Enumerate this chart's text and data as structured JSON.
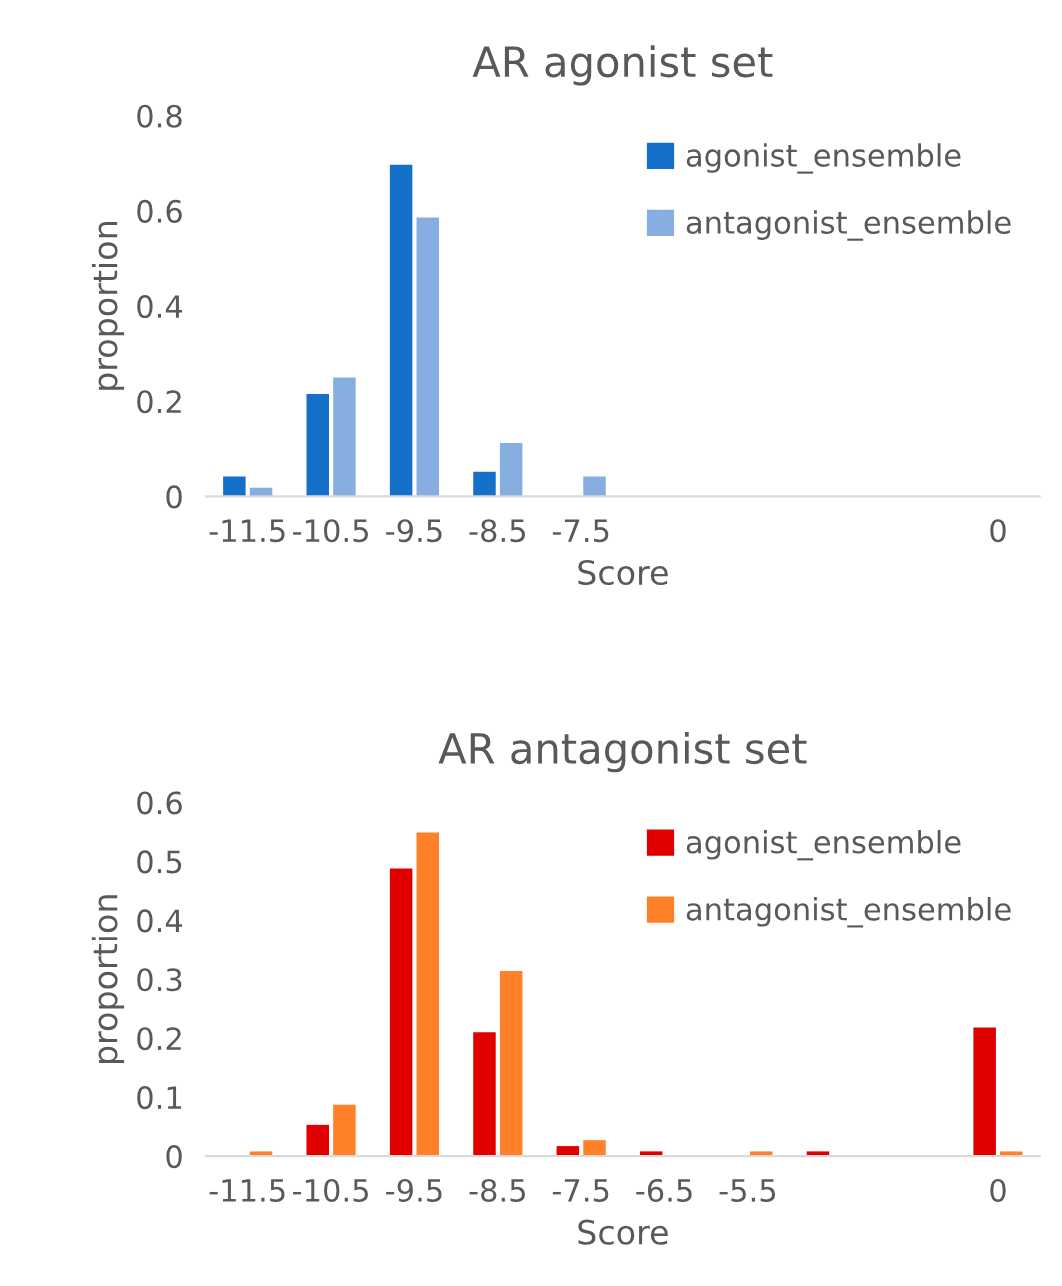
{
  "chart_data": [
    {
      "type": "bar",
      "title": "AR agonist set",
      "xlabel": "Score",
      "ylabel": "proportion",
      "categories": [
        "-11.5",
        "-10.5",
        "-9.5",
        "-8.5",
        "-7.5",
        null,
        null,
        null,
        null,
        "0"
      ],
      "series": [
        {
          "name": "agonist_ensemble",
          "color": "#1470c8",
          "values": [
            0.042,
            0.215,
            0.697,
            0.052,
            0,
            0,
            0,
            0,
            0,
            0
          ]
        },
        {
          "name": "antagonist_ensemble",
          "color": "#86aee0",
          "values": [
            0.018,
            0.25,
            0.586,
            0.112,
            0.042,
            0,
            0,
            0,
            0,
            0
          ]
        }
      ],
      "ylim": [
        0,
        0.8
      ],
      "yticks": [
        0,
        0.2,
        0.4,
        0.6,
        0.8
      ],
      "legend": "top right"
    },
    {
      "type": "bar",
      "title": "AR antagonist set",
      "xlabel": "Score",
      "ylabel": "proportion",
      "categories": [
        "-11.5",
        "-10.5",
        "-9.5",
        "-8.5",
        "-7.5",
        "-6.5",
        "-5.5",
        null,
        null,
        "0"
      ],
      "series": [
        {
          "name": "agonist_ensemble",
          "color": "#e00000",
          "values": [
            0,
            0.053,
            0.488,
            0.21,
            0.017,
            0.008,
            0,
            0.008,
            0,
            0.218
          ]
        },
        {
          "name": "antagonist_ensemble",
          "color": "#ff8028",
          "values": [
            0.008,
            0.087,
            0.549,
            0.314,
            0.027,
            0,
            0.008,
            0,
            0,
            0.008
          ]
        }
      ],
      "ylim": [
        0,
        0.6
      ],
      "yticks": [
        0,
        0.1,
        0.2,
        0.3,
        0.4,
        0.5,
        0.6
      ],
      "legend": "top right"
    }
  ]
}
